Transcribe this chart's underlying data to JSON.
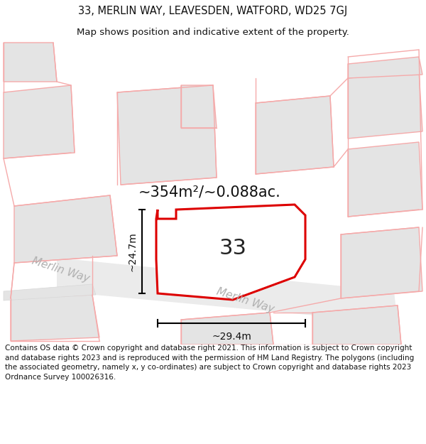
{
  "title_line1": "33, MERLIN WAY, LEAVESDEN, WATFORD, WD25 7GJ",
  "title_line2": "Map shows position and indicative extent of the property.",
  "area_text": "~354m²/~0.088ac.",
  "number_label": "33",
  "width_label": "~29.4m",
  "height_label": "~24.7m",
  "road_label": "Merlin Way",
  "footer_text": "Contains OS data © Crown copyright and database right 2021. This information is subject to Crown copyright and database rights 2023 and is reproduced with the permission of HM Land Registry. The polygons (including the associated geometry, namely x, y co-ordinates) are subject to Crown copyright and database rights 2023 Ordnance Survey 100026316.",
  "bg_color": "#ffffff",
  "map_bg": "#f8f8f8",
  "building_fill": "#e4e4e4",
  "building_stroke": "#f5aaaa",
  "road_fill": "#f0f0f0",
  "property_stroke": "#dd0000",
  "property_fill": "#ffffff",
  "dim_color": "#000000",
  "road_text_color": "#b0b0b0",
  "lw_building": 1.0,
  "lw_property": 2.2,
  "title_fontsize": 10.5,
  "subtitle_fontsize": 9.5,
  "area_fontsize": 15,
  "label_fontsize": 22,
  "dim_fontsize": 10,
  "road_fontsize": 11,
  "footer_fontsize": 7.5
}
